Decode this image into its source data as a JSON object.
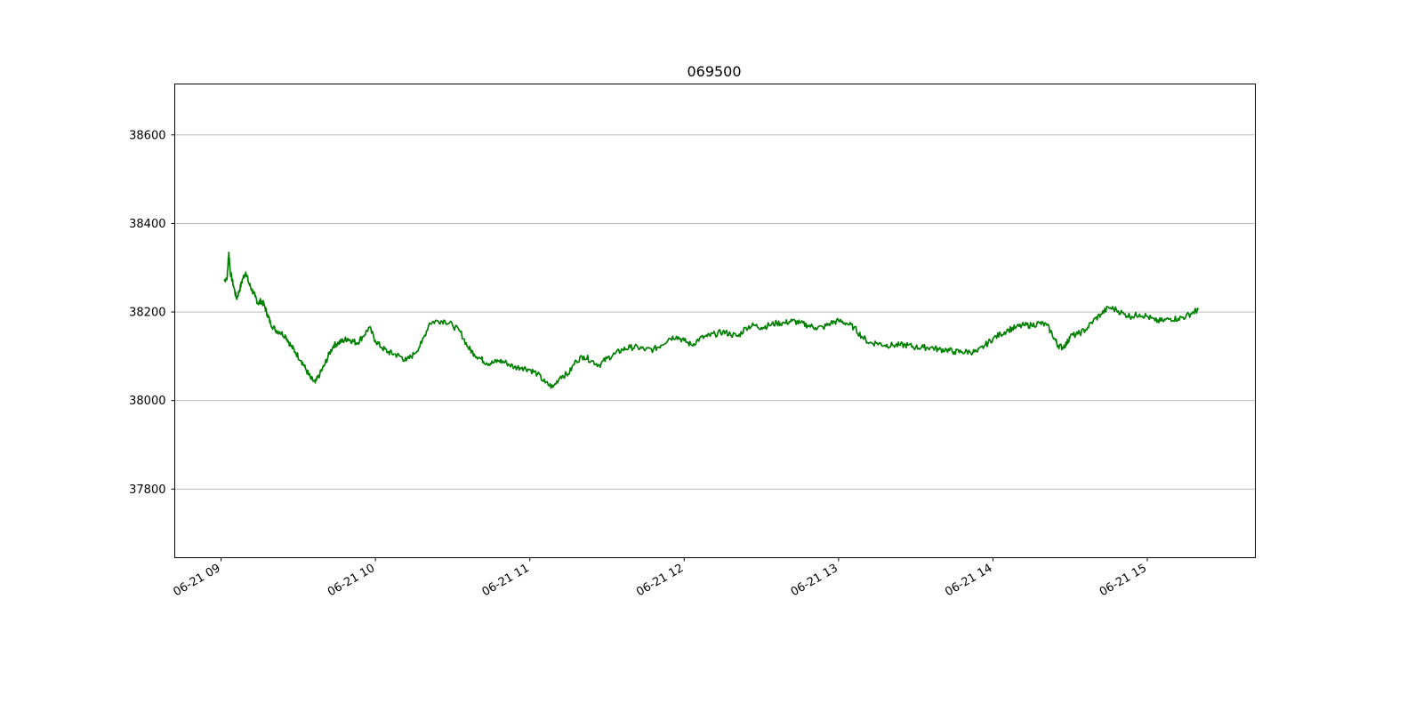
{
  "chart_data": {
    "type": "line",
    "title": "069500",
    "xlabel": "",
    "ylabel": "",
    "x_tick_labels": [
      "06-21 09",
      "06-21 10",
      "06-21 11",
      "06-21 12",
      "06-21 13",
      "06-21 14",
      "06-21 15"
    ],
    "x_tick_hours": [
      9,
      10,
      11,
      12,
      13,
      14,
      15
    ],
    "xlim_hours": [
      8.7,
      15.7
    ],
    "y_tick_labels": [
      "37800",
      "38000",
      "38200",
      "38400",
      "38600"
    ],
    "y_ticks": [
      37800,
      38000,
      38200,
      38400,
      38600
    ],
    "ylim": [
      37645,
      38715
    ],
    "grid": "y-axis major",
    "legend": "none",
    "line_color": "#008000",
    "series": [
      {
        "x_hours": [
          9.02,
          9.04,
          9.05,
          9.06,
          9.08,
          9.1,
          9.12,
          9.14,
          9.16,
          9.18,
          9.2,
          9.22,
          9.24,
          9.26,
          9.28,
          9.3,
          9.32,
          9.35,
          9.38,
          9.42,
          9.45,
          9.48,
          9.52,
          9.55,
          9.58,
          9.61,
          9.64,
          9.67,
          9.7,
          9.73,
          9.76,
          9.79,
          9.82,
          9.85,
          9.88,
          9.92,
          9.96,
          10.0,
          10.04,
          10.08,
          10.12,
          10.16,
          10.2,
          10.25,
          10.3,
          10.35,
          10.4,
          10.45,
          10.5,
          10.55,
          10.6,
          10.64,
          10.68,
          10.72,
          10.76,
          10.8,
          10.85,
          10.9,
          10.95,
          11.0,
          11.05,
          11.1,
          11.15,
          11.2,
          11.25,
          11.3,
          11.35,
          11.4,
          11.45,
          11.5,
          11.55,
          11.6,
          11.65,
          11.7,
          11.75,
          11.8,
          11.85,
          11.9,
          11.95,
          12.0,
          12.05,
          12.1,
          12.15,
          12.2,
          12.25,
          12.3,
          12.35,
          12.4,
          12.45,
          12.5,
          12.55,
          12.6,
          12.65,
          12.7,
          12.75,
          12.8,
          12.85,
          12.9,
          12.95,
          13.0,
          13.05,
          13.1,
          13.15,
          13.2,
          13.25,
          13.3,
          13.35,
          13.4,
          13.45,
          13.5,
          13.55,
          13.6,
          13.65,
          13.7,
          13.75,
          13.8,
          13.85,
          13.9,
          13.95,
          14.0,
          14.05,
          14.1,
          14.15,
          14.2,
          14.25,
          14.3,
          14.35,
          14.4,
          14.42,
          14.45,
          14.48,
          14.5,
          14.55,
          14.6,
          14.65,
          14.7,
          14.75,
          14.8,
          14.85,
          14.9,
          14.95,
          15.0,
          15.05,
          15.1,
          15.15,
          15.2,
          15.25,
          15.3,
          15.33
        ],
        "values": [
          38270,
          38280,
          38335,
          38290,
          38260,
          38230,
          38250,
          38275,
          38290,
          38265,
          38250,
          38235,
          38220,
          38225,
          38215,
          38195,
          38175,
          38160,
          38155,
          38145,
          38125,
          38110,
          38090,
          38070,
          38050,
          38040,
          38060,
          38080,
          38105,
          38125,
          38130,
          38135,
          38140,
          38135,
          38130,
          38145,
          38165,
          38135,
          38120,
          38110,
          38105,
          38100,
          38090,
          38105,
          38130,
          38175,
          38180,
          38180,
          38170,
          38155,
          38120,
          38105,
          38095,
          38085,
          38085,
          38090,
          38085,
          38075,
          38075,
          38070,
          38060,
          38040,
          38030,
          38055,
          38060,
          38090,
          38100,
          38090,
          38080,
          38095,
          38105,
          38115,
          38120,
          38120,
          38115,
          38115,
          38125,
          38140,
          38145,
          38135,
          38125,
          38140,
          38145,
          38150,
          38155,
          38150,
          38145,
          38165,
          38170,
          38165,
          38170,
          38175,
          38175,
          38180,
          38175,
          38170,
          38165,
          38165,
          38175,
          38180,
          38175,
          38165,
          38145,
          38130,
          38130,
          38125,
          38125,
          38125,
          38125,
          38120,
          38120,
          38120,
          38115,
          38115,
          38110,
          38110,
          38110,
          38110,
          38125,
          38140,
          38150,
          38160,
          38165,
          38170,
          38170,
          38175,
          38170,
          38140,
          38125,
          38120,
          38130,
          38145,
          38150,
          38160,
          38180,
          38195,
          38210,
          38205,
          38195,
          38190,
          38195,
          38190,
          38180,
          38180,
          38185,
          38185,
          38190,
          38200,
          38205
        ],
        "color": "#008000"
      }
    ]
  }
}
